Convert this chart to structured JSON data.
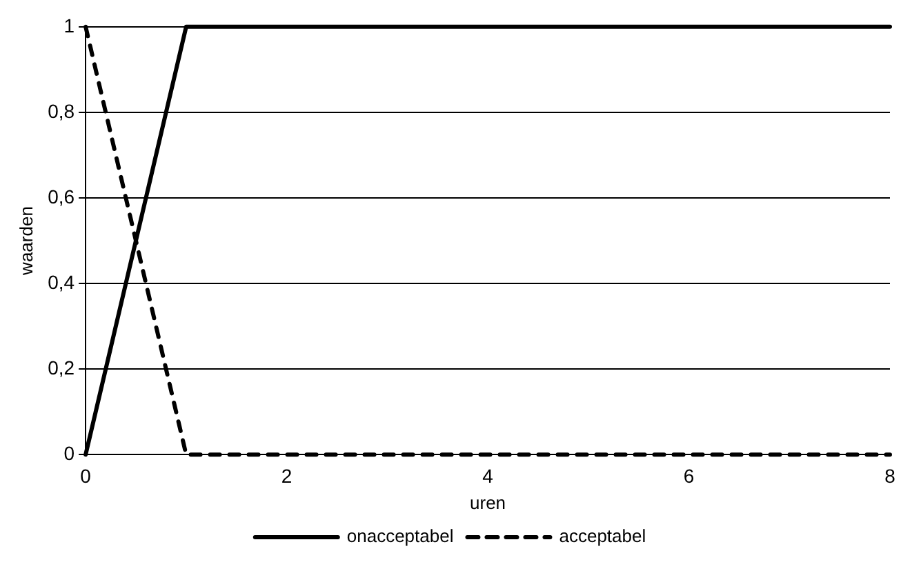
{
  "chart_data": {
    "type": "line",
    "xlabel": "uren",
    "ylabel": "waarden",
    "xlim": [
      0,
      8
    ],
    "xticks": [
      0,
      2,
      4,
      6,
      8
    ],
    "ylim": [
      0,
      1
    ],
    "yticks": [
      0,
      {
        "value": 0.2,
        "label": "0,2"
      },
      {
        "value": 0.4,
        "label": "0,4"
      },
      {
        "value": 0.6,
        "label": "0,6"
      },
      {
        "value": 0.8,
        "label": "0,8"
      },
      1
    ],
    "grid": "y",
    "legend": "bottom",
    "marker": "none",
    "series": [
      {
        "name": "onacceptabel",
        "color": "#000000",
        "x": [
          0,
          1,
          8
        ],
        "values": [
          0,
          1,
          1
        ],
        "line_style": "solid"
      },
      {
        "name": "acceptabel",
        "color": "#000000",
        "x": [
          0,
          1,
          8
        ],
        "values": [
          1,
          0,
          0
        ],
        "line_style": "dashed"
      }
    ]
  }
}
